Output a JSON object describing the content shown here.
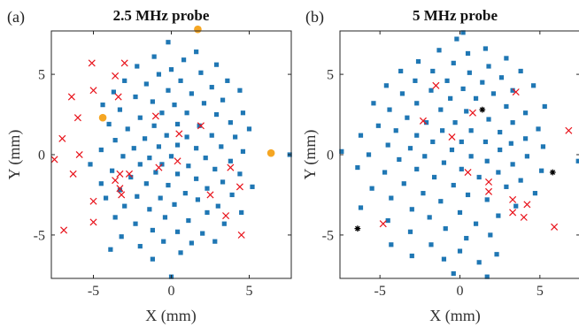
{
  "chart_data": [
    {
      "type": "scatter",
      "panel_label": "(a)",
      "title": "2.5 MHz probe",
      "xlabel": "X (mm)",
      "ylabel": "Y (mm)",
      "xlim": [
        -7.7,
        7.7
      ],
      "ylim": [
        -7.7,
        7.7
      ],
      "xticks": [
        -5,
        0,
        5
      ],
      "yticks": [
        -5,
        0,
        5
      ],
      "xtick_labels": [
        "-5",
        "0",
        "5"
      ],
      "ytick_labels": [
        "-5",
        "0",
        "5"
      ],
      "grid": false,
      "series": [
        {
          "marker": "square",
          "color": "#1f77b4",
          "points": [
            [
              -0.2,
              7.0
            ],
            [
              1.6,
              6.4
            ],
            [
              -1.1,
              6.1
            ],
            [
              0.8,
              5.9
            ],
            [
              2.9,
              5.6
            ],
            [
              -2.2,
              5.5
            ],
            [
              0.0,
              5.3
            ],
            [
              -0.8,
              5.0
            ],
            [
              1.9,
              5.1
            ],
            [
              3.6,
              4.6
            ],
            [
              -3.0,
              4.6
            ],
            [
              -1.6,
              4.4
            ],
            [
              0.6,
              4.6
            ],
            [
              2.6,
              4.2
            ],
            [
              4.4,
              4.0
            ],
            [
              -3.7,
              3.9
            ],
            [
              -0.2,
              4.0
            ],
            [
              1.3,
              3.8
            ],
            [
              -2.3,
              3.6
            ],
            [
              3.3,
              3.4
            ],
            [
              -4.4,
              3.1
            ],
            [
              -1.2,
              3.3
            ],
            [
              0.2,
              3.1
            ],
            [
              2.1,
              3.2
            ],
            [
              4.6,
              2.6
            ],
            [
              -3.3,
              2.8
            ],
            [
              -0.6,
              2.6
            ],
            [
              1.0,
              2.6
            ],
            [
              2.9,
              2.5
            ],
            [
              -2.0,
              2.3
            ],
            [
              3.8,
              2.0
            ],
            [
              -4.0,
              1.9
            ],
            [
              -1.1,
              1.8
            ],
            [
              0.4,
              1.9
            ],
            [
              1.8,
              1.8
            ],
            [
              5.0,
              1.6
            ],
            [
              -2.8,
              1.6
            ],
            [
              -0.3,
              1.2
            ],
            [
              2.6,
              1.2
            ],
            [
              4.1,
              1.1
            ],
            [
              -3.6,
              0.9
            ],
            [
              -1.7,
              1.0
            ],
            [
              1.0,
              1.1
            ],
            [
              -0.8,
              0.5
            ],
            [
              0.4,
              0.6
            ],
            [
              1.6,
              0.4
            ],
            [
              3.2,
              0.5
            ],
            [
              -4.5,
              0.3
            ],
            [
              -2.4,
              0.4
            ],
            [
              4.6,
              0.2
            ],
            [
              -3.1,
              -0.1
            ],
            [
              -1.4,
              -0.2
            ],
            [
              0.0,
              -0.1
            ],
            [
              2.2,
              -0.2
            ],
            [
              3.8,
              -0.4
            ],
            [
              -5.2,
              -0.6
            ],
            [
              -2.0,
              -0.6
            ],
            [
              -0.6,
              -0.6
            ],
            [
              1.1,
              -0.7
            ],
            [
              2.8,
              -0.9
            ],
            [
              -3.8,
              -1.0
            ],
            [
              -1.0,
              -1.1
            ],
            [
              0.4,
              -1.2
            ],
            [
              4.4,
              -1.2
            ],
            [
              -2.6,
              -1.4
            ],
            [
              1.6,
              -1.5
            ],
            [
              3.3,
              -1.7
            ],
            [
              -4.5,
              -1.8
            ],
            [
              -1.6,
              -1.8
            ],
            [
              -0.2,
              -1.9
            ],
            [
              2.3,
              -2.1
            ],
            [
              5.2,
              -2.0
            ],
            [
              -3.3,
              -2.2
            ],
            [
              0.9,
              -2.4
            ],
            [
              3.9,
              -2.5
            ],
            [
              -2.2,
              -2.6
            ],
            [
              -0.7,
              -2.7
            ],
            [
              1.7,
              -2.8
            ],
            [
              -4.2,
              -2.7
            ],
            [
              3.0,
              -3.2
            ],
            [
              -3.0,
              -3.2
            ],
            [
              0.2,
              -3.1
            ],
            [
              -1.4,
              -3.4
            ],
            [
              2.3,
              -3.6
            ],
            [
              4.5,
              -3.6
            ],
            [
              -3.6,
              -3.9
            ],
            [
              -0.4,
              -3.9
            ],
            [
              1.1,
              -4.1
            ],
            [
              3.4,
              -4.3
            ],
            [
              -2.3,
              -4.3
            ],
            [
              -1.2,
              -4.7
            ],
            [
              0.4,
              -4.8
            ],
            [
              2.0,
              -4.9
            ],
            [
              -3.2,
              -5.1
            ],
            [
              -0.5,
              -5.4
            ],
            [
              1.3,
              -5.5
            ],
            [
              -2.0,
              -5.7
            ],
            [
              2.8,
              -5.4
            ],
            [
              -3.9,
              -5.9
            ],
            [
              0.6,
              -6.1
            ],
            [
              -1.2,
              -6.5
            ],
            [
              0.0,
              -7.6
            ],
            [
              7.6,
              0.0
            ]
          ]
        },
        {
          "marker": "x",
          "color": "#e8131b",
          "points": [
            [
              -5.1,
              5.7
            ],
            [
              -3.0,
              5.7
            ],
            [
              -6.4,
              3.6
            ],
            [
              -3.6,
              4.9
            ],
            [
              -5.0,
              4.0
            ],
            [
              -3.4,
              3.6
            ],
            [
              -6.0,
              2.3
            ],
            [
              -1.0,
              2.4
            ],
            [
              1.9,
              1.8
            ],
            [
              0.5,
              1.3
            ],
            [
              -7.0,
              1.0
            ],
            [
              -5.9,
              0.0
            ],
            [
              -7.5,
              -0.3
            ],
            [
              0.4,
              -0.4
            ],
            [
              -0.8,
              -0.8
            ],
            [
              3.8,
              -0.8
            ],
            [
              -6.3,
              -1.2
            ],
            [
              -2.7,
              -1.2
            ],
            [
              -3.3,
              -1.2
            ],
            [
              -3.6,
              -1.6
            ],
            [
              -3.3,
              -2.1
            ],
            [
              4.4,
              -2.0
            ],
            [
              -5.0,
              -2.9
            ],
            [
              2.5,
              -2.5
            ],
            [
              -3.2,
              -2.5
            ],
            [
              3.5,
              -3.8
            ],
            [
              -5.0,
              -4.2
            ],
            [
              -6.9,
              -4.7
            ],
            [
              4.5,
              -5.0
            ]
          ]
        },
        {
          "marker": "circle",
          "color": "#f5a623",
          "points": [
            [
              1.7,
              7.8
            ],
            [
              -4.4,
              2.3
            ],
            [
              6.4,
              0.1
            ]
          ]
        }
      ]
    },
    {
      "type": "scatter",
      "panel_label": "(b)",
      "title": "5 MHz probe",
      "xlabel": "X (mm)",
      "ylabel": "Y (mm)",
      "xlim": [
        -7.5,
        7.5
      ],
      "ylim": [
        -7.7,
        7.7
      ],
      "xticks": [
        -5,
        0,
        5
      ],
      "yticks": [
        -5,
        0,
        5
      ],
      "xtick_labels": [
        "-5",
        "0",
        "5"
      ],
      "ytick_labels": [
        "-5",
        "0",
        "5"
      ],
      "grid": false,
      "series": [
        {
          "marker": "square",
          "color": "#1f77b4",
          "points": [
            [
              -0.2,
              7.2
            ],
            [
              1.6,
              6.6
            ],
            [
              -1.3,
              6.5
            ],
            [
              0.5,
              6.3
            ],
            [
              2.9,
              6.0
            ],
            [
              -2.6,
              5.8
            ],
            [
              -0.4,
              5.7
            ],
            [
              1.8,
              5.5
            ],
            [
              -3.7,
              5.2
            ],
            [
              -1.7,
              5.2
            ],
            [
              0.6,
              5.1
            ],
            [
              3.8,
              5.2
            ],
            [
              2.6,
              4.8
            ],
            [
              -2.8,
              4.6
            ],
            [
              -0.8,
              4.6
            ],
            [
              1.4,
              4.5
            ],
            [
              -4.6,
              4.3
            ],
            [
              4.6,
              4.3
            ],
            [
              0.2,
              4.1
            ],
            [
              3.3,
              4.0
            ],
            [
              -3.6,
              3.8
            ],
            [
              -1.8,
              4.0
            ],
            [
              2.1,
              3.8
            ],
            [
              -0.6,
              3.5
            ],
            [
              1.0,
              3.5
            ],
            [
              -5.4,
              3.2
            ],
            [
              5.3,
              3.0
            ],
            [
              -2.7,
              3.2
            ],
            [
              2.9,
              3.0
            ],
            [
              -4.4,
              2.8
            ],
            [
              -1.2,
              2.8
            ],
            [
              0.4,
              2.7
            ],
            [
              4.1,
              2.6
            ],
            [
              -3.3,
              2.3
            ],
            [
              1.8,
              2.2
            ],
            [
              -2.1,
              2.0
            ],
            [
              -0.3,
              2.0
            ],
            [
              3.3,
              2.0
            ],
            [
              -5.1,
              1.8
            ],
            [
              4.9,
              1.6
            ],
            [
              -4.0,
              1.5
            ],
            [
              -1.1,
              1.5
            ],
            [
              0.7,
              1.5
            ],
            [
              2.5,
              1.4
            ],
            [
              -2.7,
              1.2
            ],
            [
              -6.2,
              1.2
            ],
            [
              4.1,
              1.0
            ],
            [
              -1.7,
              0.8
            ],
            [
              0.1,
              0.8
            ],
            [
              1.6,
              0.8
            ],
            [
              3.2,
              0.7
            ],
            [
              -4.5,
              0.6
            ],
            [
              -3.1,
              0.4
            ],
            [
              -0.5,
              0.3
            ],
            [
              2.5,
              0.3
            ],
            [
              5.2,
              0.5
            ],
            [
              -5.7,
              0.0
            ],
            [
              -2.2,
              -0.1
            ],
            [
              0.7,
              -0.1
            ],
            [
              4.2,
              -0.1
            ],
            [
              -3.8,
              -0.3
            ],
            [
              1.7,
              -0.4
            ],
            [
              -1.0,
              -0.5
            ],
            [
              3.3,
              -0.6
            ],
            [
              -6.4,
              -0.8
            ],
            [
              -4.7,
              -1.1
            ],
            [
              -2.7,
              -0.9
            ],
            [
              0.1,
              -0.9
            ],
            [
              2.4,
              -1.1
            ],
            [
              5.1,
              -1.0
            ],
            [
              -1.6,
              -1.4
            ],
            [
              1.2,
              -1.4
            ],
            [
              3.8,
              -1.6
            ],
            [
              -3.5,
              -1.8
            ],
            [
              -0.4,
              -1.9
            ],
            [
              -5.5,
              -2.1
            ],
            [
              2.9,
              -2.0
            ],
            [
              -2.3,
              -2.4
            ],
            [
              0.5,
              -2.5
            ],
            [
              4.7,
              -2.4
            ],
            [
              -4.3,
              -2.7
            ],
            [
              -1.2,
              -2.9
            ],
            [
              1.7,
              -2.8
            ],
            [
              3.5,
              -3.2
            ],
            [
              -3.0,
              -3.4
            ],
            [
              -6.2,
              -3.3
            ],
            [
              0.0,
              -3.6
            ],
            [
              -1.9,
              -3.9
            ],
            [
              2.4,
              -3.8
            ],
            [
              -4.5,
              -4.1
            ],
            [
              1.0,
              -4.3
            ],
            [
              -0.9,
              -4.6
            ],
            [
              -3.1,
              -4.8
            ],
            [
              0.4,
              -5.2
            ],
            [
              1.9,
              -5.0
            ],
            [
              -1.8,
              -5.6
            ],
            [
              -4.3,
              -5.6
            ],
            [
              0.0,
              -6.0
            ],
            [
              2.3,
              -6.2
            ],
            [
              -1.0,
              -6.5
            ],
            [
              1.2,
              -6.7
            ],
            [
              -3.0,
              -6.3
            ],
            [
              1.7,
              -7.6
            ],
            [
              -0.4,
              -7.4
            ],
            [
              0.2,
              7.6
            ],
            [
              -7.4,
              0.2
            ],
            [
              7.4,
              -0.4
            ]
          ]
        },
        {
          "marker": "x",
          "color": "#e8131b",
          "points": [
            [
              -1.5,
              4.3
            ],
            [
              3.5,
              3.9
            ],
            [
              0.8,
              2.6
            ],
            [
              -2.3,
              2.1
            ],
            [
              -0.5,
              1.1
            ],
            [
              6.8,
              1.5
            ],
            [
              0.5,
              -1.1
            ],
            [
              1.8,
              -1.7
            ],
            [
              1.8,
              -2.3
            ],
            [
              3.3,
              -2.8
            ],
            [
              4.2,
              -3.1
            ],
            [
              3.3,
              -3.6
            ],
            [
              4.0,
              -3.9
            ],
            [
              -4.8,
              -4.3
            ],
            [
              5.9,
              -4.5
            ]
          ]
        },
        {
          "marker": "asterisk",
          "color": "#000000",
          "points": [
            [
              1.4,
              2.8
            ],
            [
              5.8,
              -1.1
            ],
            [
              -6.4,
              -4.6
            ]
          ]
        }
      ]
    }
  ]
}
